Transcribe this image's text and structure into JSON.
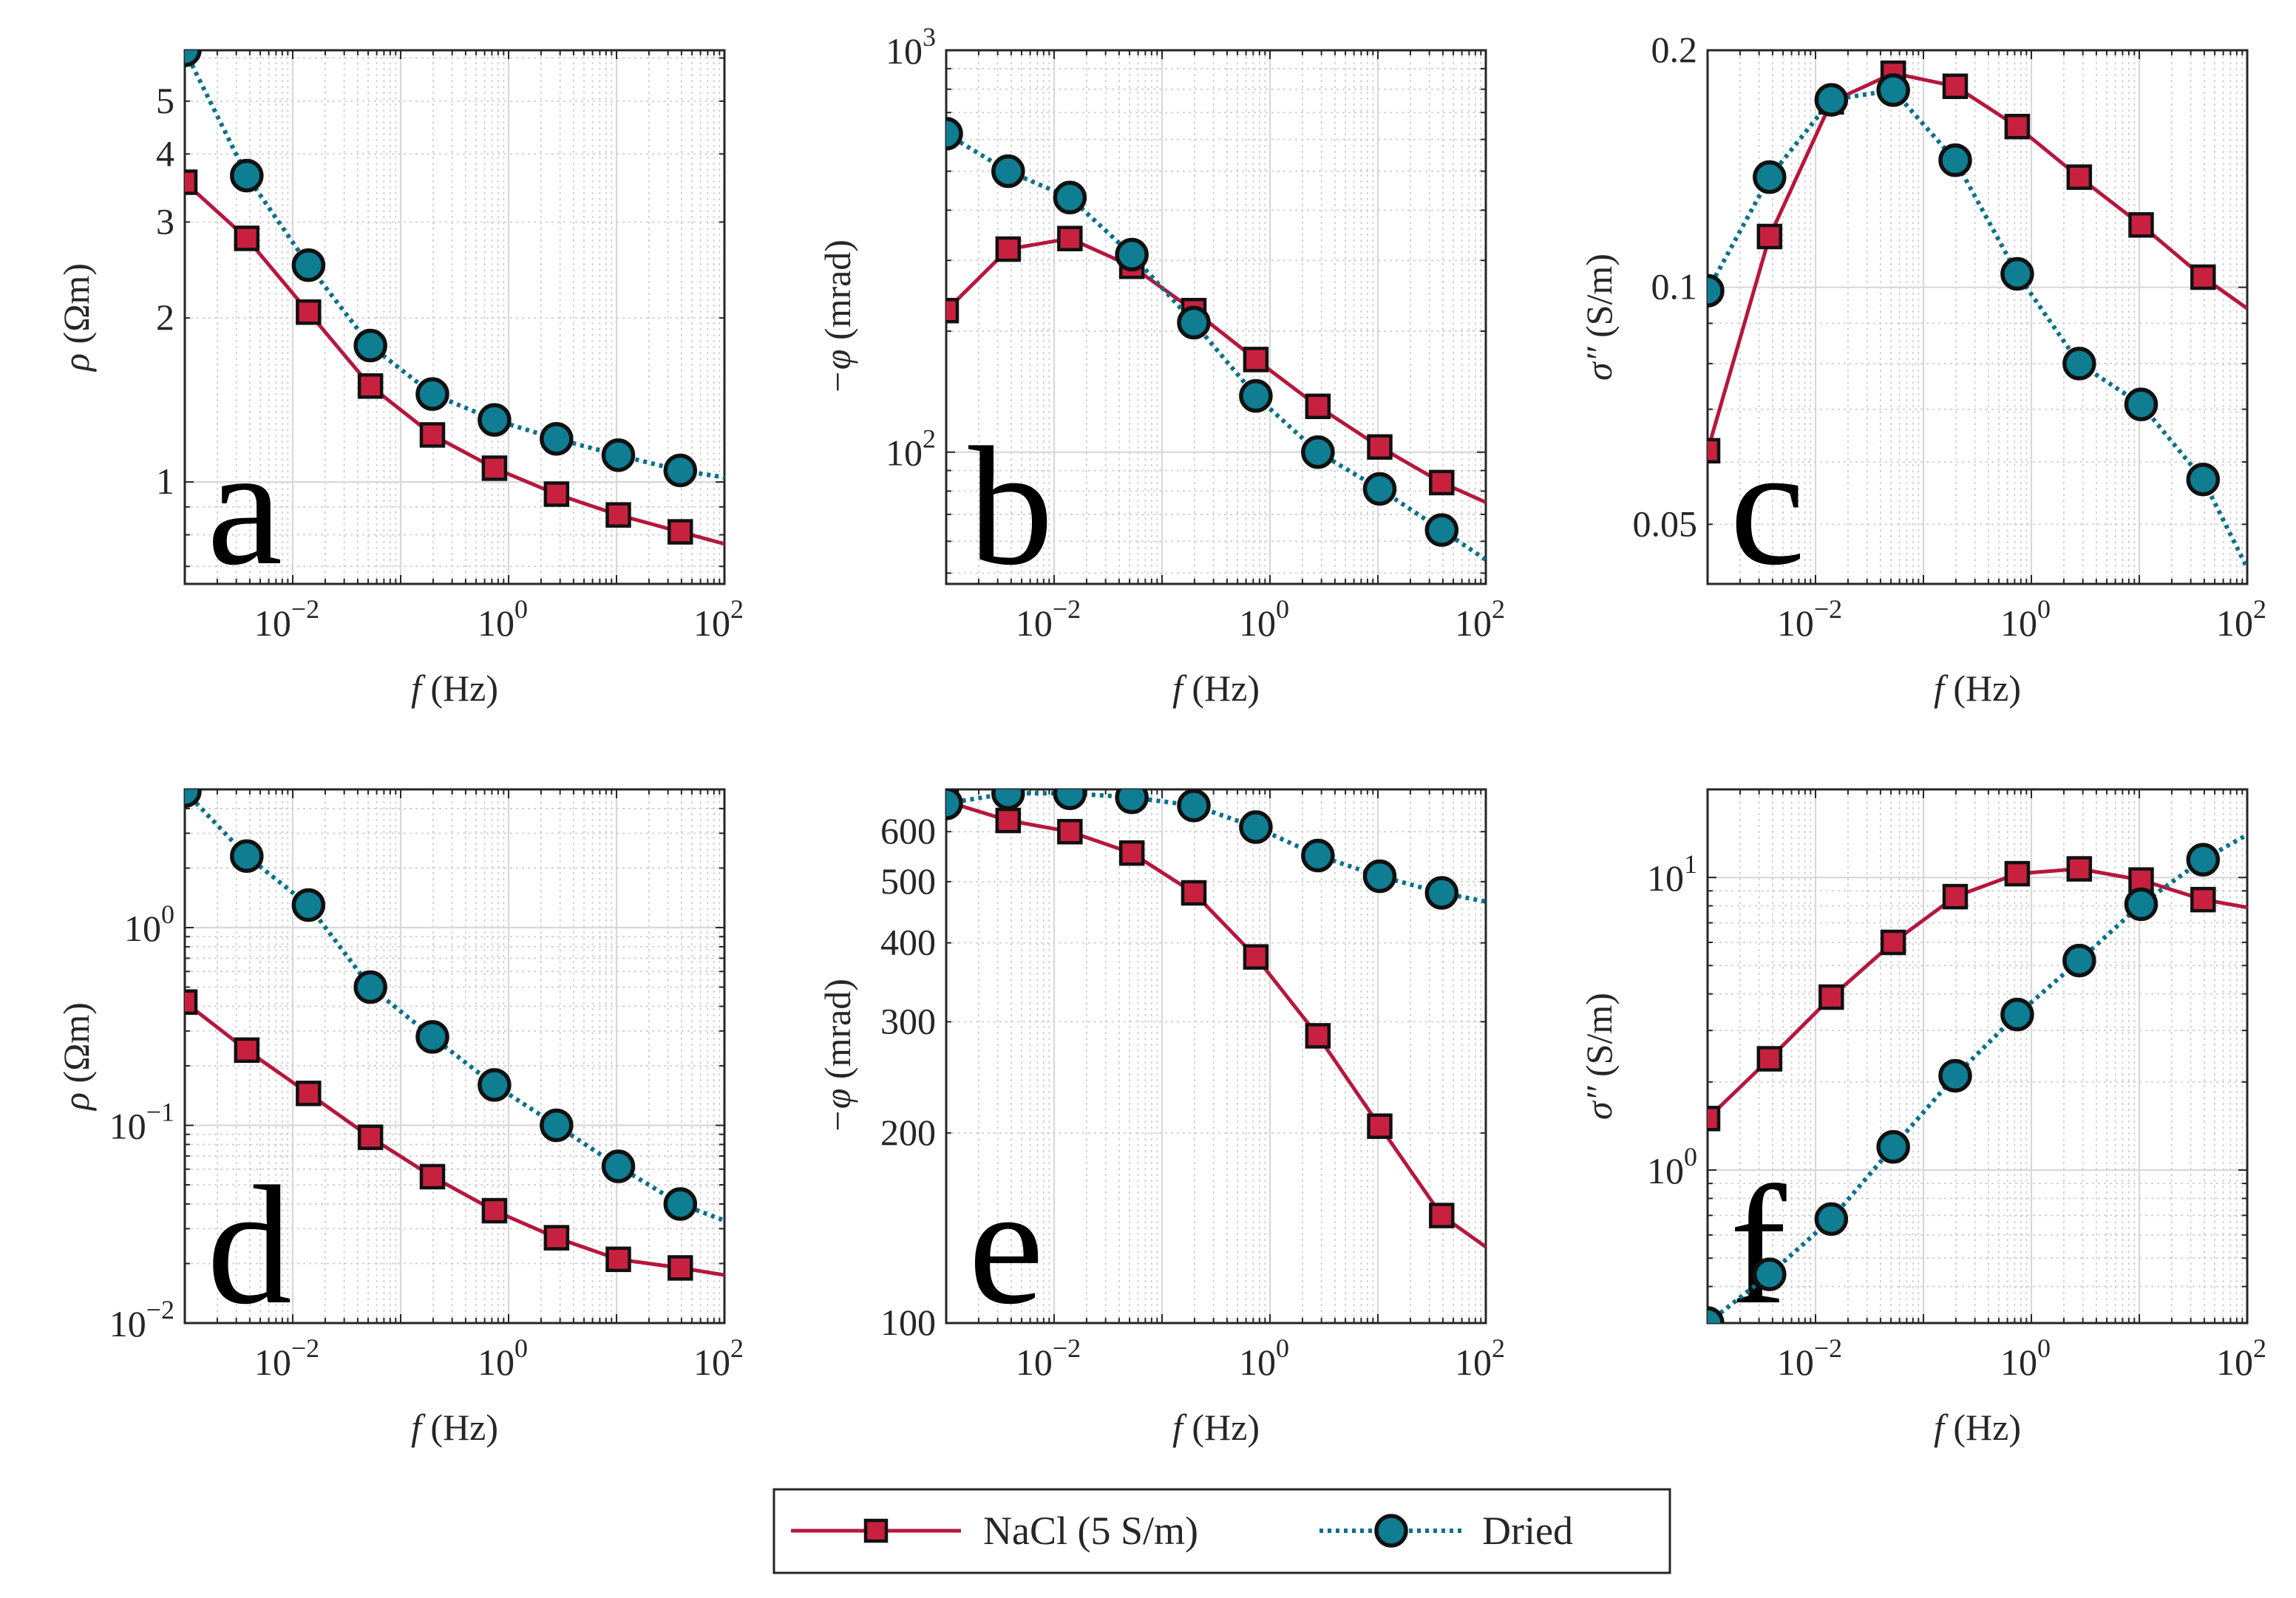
{
  "figure": {
    "legend": {
      "entries": [
        {
          "label": "NaCl (5 S/m)",
          "series_key": "nacl"
        },
        {
          "label": "Dried",
          "series_key": "dried"
        }
      ],
      "placement": "bottom-center"
    },
    "colors": {
      "nacl_line": "#b5173d",
      "nacl_marker": "#c8213f",
      "dried_line": "#0a7089",
      "dried_marker": "#0f7d92",
      "axis": "#262626",
      "grid": "#d0d0d0"
    }
  },
  "chart_data": [
    {
      "panel_label": "a",
      "type": "line",
      "xscale": "log",
      "yscale": "log",
      "xlim": [
        0.001,
        100
      ],
      "ylim": [
        0.65,
        6.2
      ],
      "xlabel_var": "f",
      "xlabel_unit": "(Hz)",
      "ylabel_var": "ρ",
      "ylabel_unit": "(Ωm)",
      "x_ticks": [
        {
          "value": 0.01,
          "base": "10",
          "exp": "−2"
        },
        {
          "value": 1,
          "base": "10",
          "exp": "0"
        },
        {
          "value": 100,
          "base": "10",
          "exp": "2"
        }
      ],
      "y_ticks": [
        {
          "value": 1,
          "label": "1"
        },
        {
          "value": 2,
          "label": "2"
        },
        {
          "value": 3,
          "label": "3"
        },
        {
          "value": 4,
          "label": "4"
        },
        {
          "value": 5,
          "label": "5"
        }
      ],
      "series": [
        {
          "name": "NaCl (5 S/m)",
          "key": "nacl",
          "x": [
            0.001,
            0.00375,
            0.014,
            0.0525,
            0.197,
            0.74,
            2.78,
            10.4,
            39
          ],
          "y": [
            3.55,
            2.8,
            2.05,
            1.5,
            1.22,
            1.06,
            0.95,
            0.87,
            0.81
          ],
          "line_end": {
            "x": 100,
            "y": 0.77
          }
        },
        {
          "name": "Dried",
          "key": "dried",
          "x": [
            0.001,
            0.00375,
            0.014,
            0.0525,
            0.197,
            0.74,
            2.78,
            10.4,
            39
          ],
          "y": [
            6.2,
            3.65,
            2.5,
            1.78,
            1.45,
            1.3,
            1.2,
            1.12,
            1.05
          ],
          "line_end": {
            "x": 100,
            "y": 1.02
          }
        }
      ]
    },
    {
      "panel_label": "b",
      "type": "line",
      "xscale": "log",
      "yscale": "log",
      "xlim": [
        0.001,
        100
      ],
      "ylim": [
        47,
        1000
      ],
      "xlabel_var": "f",
      "xlabel_unit": "(Hz)",
      "ylabel_var": "−φ",
      "ylabel_unit": "(mrad)",
      "x_ticks": [
        {
          "value": 0.01,
          "base": "10",
          "exp": "−2"
        },
        {
          "value": 1,
          "base": "10",
          "exp": "0"
        },
        {
          "value": 100,
          "base": "10",
          "exp": "2"
        }
      ],
      "y_ticks": [
        {
          "value": 100,
          "base": "10",
          "exp": "2"
        },
        {
          "value": 1000,
          "base": "10",
          "exp": "3"
        }
      ],
      "series": [
        {
          "name": "NaCl (5 S/m)",
          "key": "nacl",
          "x": [
            0.001,
            0.00375,
            0.014,
            0.0525,
            0.197,
            0.74,
            2.78,
            10.4,
            39
          ],
          "y": [
            225,
            320,
            340,
            290,
            225,
            170,
            130,
            103,
            84
          ],
          "line_end": {
            "x": 100,
            "y": 75
          }
        },
        {
          "name": "Dried",
          "key": "dried",
          "x": [
            0.001,
            0.00375,
            0.014,
            0.0525,
            0.197,
            0.74,
            2.78,
            10.4,
            39
          ],
          "y": [
            620,
            500,
            430,
            310,
            210,
            138,
            100,
            81,
            64
          ],
          "line_end": {
            "x": 100,
            "y": 54
          }
        }
      ]
    },
    {
      "panel_label": "c",
      "type": "line",
      "xscale": "log",
      "yscale": "log",
      "xlim": [
        0.001,
        100
      ],
      "ylim": [
        0.042,
        0.2
      ],
      "xlabel_var": "f",
      "xlabel_unit": "(Hz)",
      "ylabel_var": "σ″",
      "ylabel_unit": "(S/m)",
      "x_ticks": [
        {
          "value": 0.01,
          "base": "10",
          "exp": "−2"
        },
        {
          "value": 1,
          "base": "10",
          "exp": "0"
        },
        {
          "value": 100,
          "base": "10",
          "exp": "2"
        }
      ],
      "y_ticks": [
        {
          "value": 0.05,
          "label": "0.05"
        },
        {
          "value": 0.1,
          "label": "0.1"
        },
        {
          "value": 0.2,
          "label": "0.2"
        }
      ],
      "series": [
        {
          "name": "NaCl (5 S/m)",
          "key": "nacl",
          "x": [
            0.001,
            0.00375,
            0.014,
            0.0525,
            0.197,
            0.74,
            2.78,
            10.4,
            39
          ],
          "y": [
            0.062,
            0.116,
            0.172,
            0.187,
            0.18,
            0.16,
            0.138,
            0.12,
            0.103
          ],
          "line_end": {
            "x": 100,
            "y": 0.094
          }
        },
        {
          "name": "Dried",
          "key": "dried",
          "x": [
            0.001,
            0.00375,
            0.014,
            0.0525,
            0.197,
            0.74,
            2.78,
            10.4,
            39
          ],
          "y": [
            0.099,
            0.138,
            0.173,
            0.178,
            0.145,
            0.104,
            0.08,
            0.071,
            0.057
          ],
          "line_end": {
            "x": 100,
            "y": 0.044
          }
        }
      ]
    },
    {
      "panel_label": "d",
      "type": "line",
      "xscale": "log",
      "yscale": "log",
      "xlim": [
        0.001,
        100
      ],
      "ylim": [
        0.01,
        5
      ],
      "xlabel_var": "f",
      "xlabel_unit": "(Hz)",
      "ylabel_var": "ρ",
      "ylabel_unit": "(Ωm)",
      "x_ticks": [
        {
          "value": 0.01,
          "base": "10",
          "exp": "−2"
        },
        {
          "value": 1,
          "base": "10",
          "exp": "0"
        },
        {
          "value": 100,
          "base": "10",
          "exp": "2"
        }
      ],
      "y_ticks": [
        {
          "value": 0.01,
          "base": "10",
          "exp": "−2"
        },
        {
          "value": 0.1,
          "base": "10",
          "exp": "−1"
        },
        {
          "value": 1,
          "base": "10",
          "exp": "0"
        }
      ],
      "series": [
        {
          "name": "NaCl (5 S/m)",
          "key": "nacl",
          "x": [
            0.001,
            0.00375,
            0.014,
            0.0525,
            0.197,
            0.74,
            2.78,
            10.4,
            39
          ],
          "y": [
            0.42,
            0.24,
            0.145,
            0.087,
            0.055,
            0.037,
            0.027,
            0.021,
            0.019
          ],
          "line_end": {
            "x": 100,
            "y": 0.0175
          }
        },
        {
          "name": "Dried",
          "key": "dried",
          "x": [
            0.001,
            0.00375,
            0.014,
            0.0525,
            0.197,
            0.74,
            2.78,
            10.4,
            39
          ],
          "y": [
            4.9,
            2.3,
            1.3,
            0.5,
            0.28,
            0.16,
            0.1,
            0.062,
            0.04
          ],
          "line_end": {
            "x": 100,
            "y": 0.033
          }
        }
      ]
    },
    {
      "panel_label": "e",
      "type": "line",
      "xscale": "log",
      "yscale": "log",
      "xlim": [
        0.001,
        100
      ],
      "ylim": [
        100,
        700
      ],
      "xlabel_var": "f",
      "xlabel_unit": "(Hz)",
      "ylabel_var": "−φ",
      "ylabel_unit": "(mrad)",
      "x_ticks": [
        {
          "value": 0.01,
          "base": "10",
          "exp": "−2"
        },
        {
          "value": 1,
          "base": "10",
          "exp": "0"
        },
        {
          "value": 100,
          "base": "10",
          "exp": "2"
        }
      ],
      "y_ticks": [
        {
          "value": 100,
          "label": "100"
        },
        {
          "value": 200,
          "label": "200"
        },
        {
          "value": 300,
          "label": "300"
        },
        {
          "value": 400,
          "label": "400"
        },
        {
          "value": 500,
          "label": "500"
        },
        {
          "value": 600,
          "label": "600"
        }
      ],
      "series": [
        {
          "name": "NaCl (5 S/m)",
          "key": "nacl",
          "x": [
            0.001,
            0.00375,
            0.014,
            0.0525,
            0.197,
            0.74,
            2.78,
            10.4,
            39
          ],
          "y": [
            670,
            625,
            600,
            555,
            480,
            380,
            285,
            205,
            148
          ],
          "line_end": {
            "x": 100,
            "y": 132
          }
        },
        {
          "name": "Dried",
          "key": "dried",
          "x": [
            0.001,
            0.00375,
            0.014,
            0.0525,
            0.197,
            0.74,
            2.78,
            10.4,
            39
          ],
          "y": [
            665,
            690,
            690,
            680,
            660,
            610,
            550,
            510,
            480
          ],
          "line_end": {
            "x": 100,
            "y": 465
          }
        }
      ]
    },
    {
      "panel_label": "f",
      "type": "line",
      "xscale": "log",
      "yscale": "log",
      "xlim": [
        0.001,
        100
      ],
      "ylim": [
        0.3,
        20
      ],
      "xlabel_var": "f",
      "xlabel_unit": "(Hz)",
      "ylabel_var": "σ″",
      "ylabel_unit": "(S/m)",
      "x_ticks": [
        {
          "value": 0.01,
          "base": "10",
          "exp": "−2"
        },
        {
          "value": 1,
          "base": "10",
          "exp": "0"
        },
        {
          "value": 100,
          "base": "10",
          "exp": "2"
        }
      ],
      "y_ticks": [
        {
          "value": 1,
          "base": "10",
          "exp": "0"
        },
        {
          "value": 10,
          "base": "10",
          "exp": "1"
        }
      ],
      "series": [
        {
          "name": "NaCl (5 S/m)",
          "key": "nacl",
          "x": [
            0.001,
            0.00375,
            0.014,
            0.0525,
            0.197,
            0.74,
            2.78,
            10.4,
            39
          ],
          "y": [
            1.5,
            2.4,
            3.9,
            6,
            8.6,
            10.3,
            10.7,
            9.8,
            8.4
          ],
          "line_end": {
            "x": 100,
            "y": 7.9
          }
        },
        {
          "name": "Dried",
          "key": "dried",
          "x": [
            0.001,
            0.00375,
            0.014,
            0.0525,
            0.197,
            0.74,
            2.78,
            10.4,
            39
          ],
          "y": [
            0.3,
            0.44,
            0.68,
            1.2,
            2.1,
            3.4,
            5.2,
            8.1,
            11.5
          ],
          "line_end": {
            "x": 100,
            "y": 14
          }
        }
      ]
    }
  ]
}
